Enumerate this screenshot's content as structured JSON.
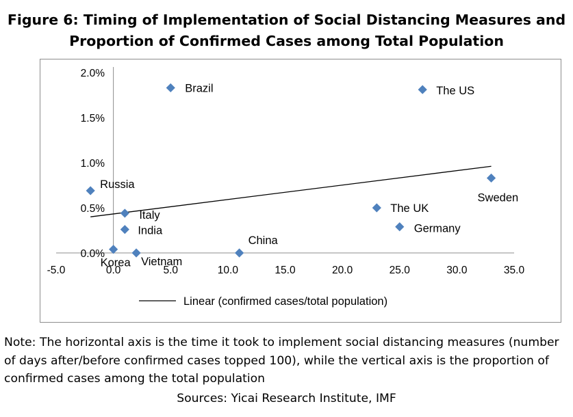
{
  "title_lines": [
    "Figure 6: Timing of Implementation of Social Distancing Measures and",
    "Proportion of Confirmed Cases among Total Population"
  ],
  "chart_data": {
    "type": "scatter",
    "title": "Figure 6: Timing of Implementation of Social Distancing Measures and Proportion of Confirmed Cases among Total Population",
    "xlabel": "",
    "ylabel": "",
    "xlim": [
      -5,
      35
    ],
    "ylim": [
      0,
      2.0
    ],
    "x_ticks": [
      -5,
      0,
      5,
      10,
      15,
      20,
      25,
      30,
      35
    ],
    "x_tick_labels": [
      "-5.0",
      "0.0",
      "5.0",
      "10.0",
      "15.0",
      "20.0",
      "25.0",
      "30.0",
      "35.0"
    ],
    "y_ticks": [
      0,
      0.5,
      1.0,
      1.5,
      2.0
    ],
    "y_tick_labels": [
      "0.0%",
      "0.5%",
      "1.0%",
      "1.5%",
      "2.0%"
    ],
    "grid": false,
    "marker_color": "#4f81bd",
    "points": [
      {
        "label": "Brazil",
        "x": 5,
        "y": 1.83
      },
      {
        "label": "The US",
        "x": 27,
        "y": 1.81
      },
      {
        "label": "Sweden",
        "x": 33,
        "y": 0.83
      },
      {
        "label": "Russia",
        "x": -2,
        "y": 0.69
      },
      {
        "label": "The UK",
        "x": 23,
        "y": 0.5
      },
      {
        "label": "Italy",
        "x": 1,
        "y": 0.44
      },
      {
        "label": "Germany",
        "x": 25,
        "y": 0.29
      },
      {
        "label": "India",
        "x": 1,
        "y": 0.26
      },
      {
        "label": "Korea",
        "x": 0,
        "y": 0.04
      },
      {
        "label": "Vietnam",
        "x": 2,
        "y": 0.0
      },
      {
        "label": "China",
        "x": 11,
        "y": 0.0
      }
    ],
    "trendline": {
      "name": "Linear (confirmed cases/total population)",
      "x": [
        -2,
        33
      ],
      "y": [
        0.4,
        0.96
      ],
      "color": "#000000"
    },
    "legend_position": "bottom"
  },
  "note": "Note: The horizontal axis is the time it took to implement social distancing measures (number of days after/before confirmed cases topped 100), while the vertical axis is the proportion of confirmed cases among the total population",
  "sources": "Sources: Yicai Research Institute, IMF"
}
